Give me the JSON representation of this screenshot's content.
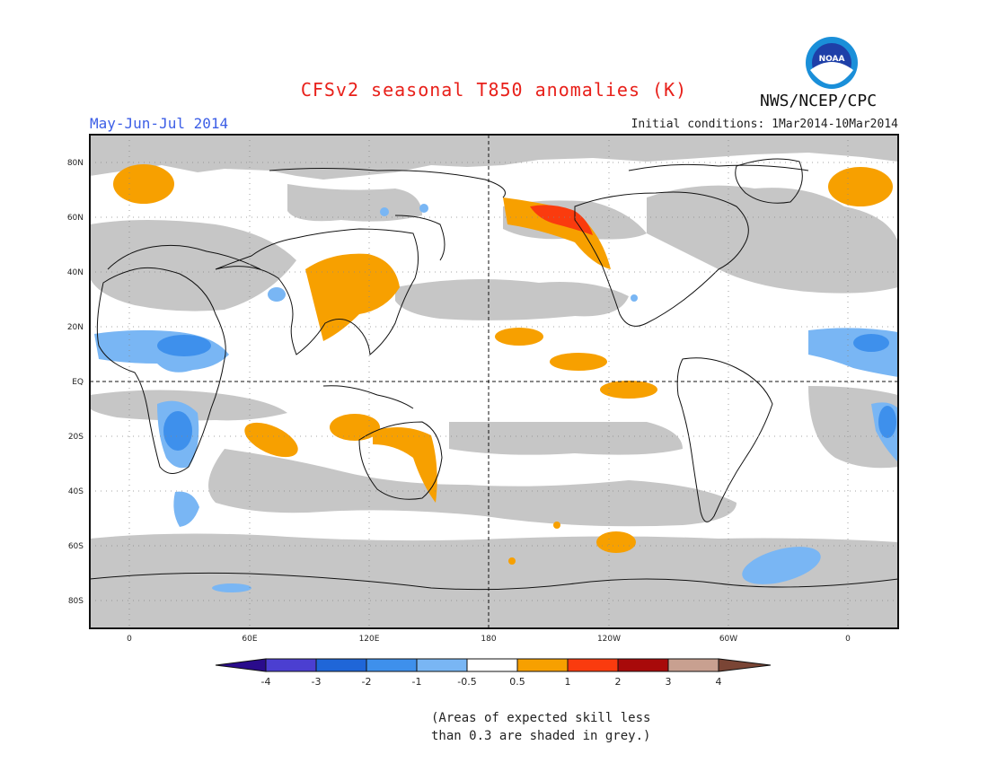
{
  "header": {
    "title": "CFSv2 seasonal T850 anomalies (K)",
    "period": "May-Jun-Jul 2014",
    "initial_conditions": "Initial conditions: 1Mar2014-10Mar2014",
    "agency": "NWS/NCEP/CPC",
    "logo_text": "NOAA"
  },
  "axes": {
    "lat_labels": [
      "80N",
      "60N",
      "40N",
      "20N",
      "EQ",
      "20S",
      "40S",
      "60S",
      "80S"
    ],
    "lon_labels": [
      "0",
      "60E",
      "120E",
      "180",
      "120W",
      "60W",
      "0"
    ]
  },
  "colorbar": {
    "labels": [
      "-4",
      "-3",
      "-2",
      "-1",
      "-0.5",
      "0.5",
      "1",
      "2",
      "3",
      "4"
    ],
    "colors": [
      "#2a0c8c",
      "#4b3fd1",
      "#1f66d8",
      "#3e90ec",
      "#79b6f4",
      "#ffffff",
      "#f7a000",
      "#fa3b0e",
      "#a80a0a",
      "#c8a090",
      "#7a4535"
    ]
  },
  "colors": {
    "grey_low_skill": "#c6c6c6",
    "ocean": "#ffffff",
    "title_red": "#e8201a",
    "period_blue": "#3c5ee6"
  },
  "footnote": {
    "line1": "(Areas of expected skill less",
    "line2": "than 0.3 are shaded in grey.)"
  }
}
